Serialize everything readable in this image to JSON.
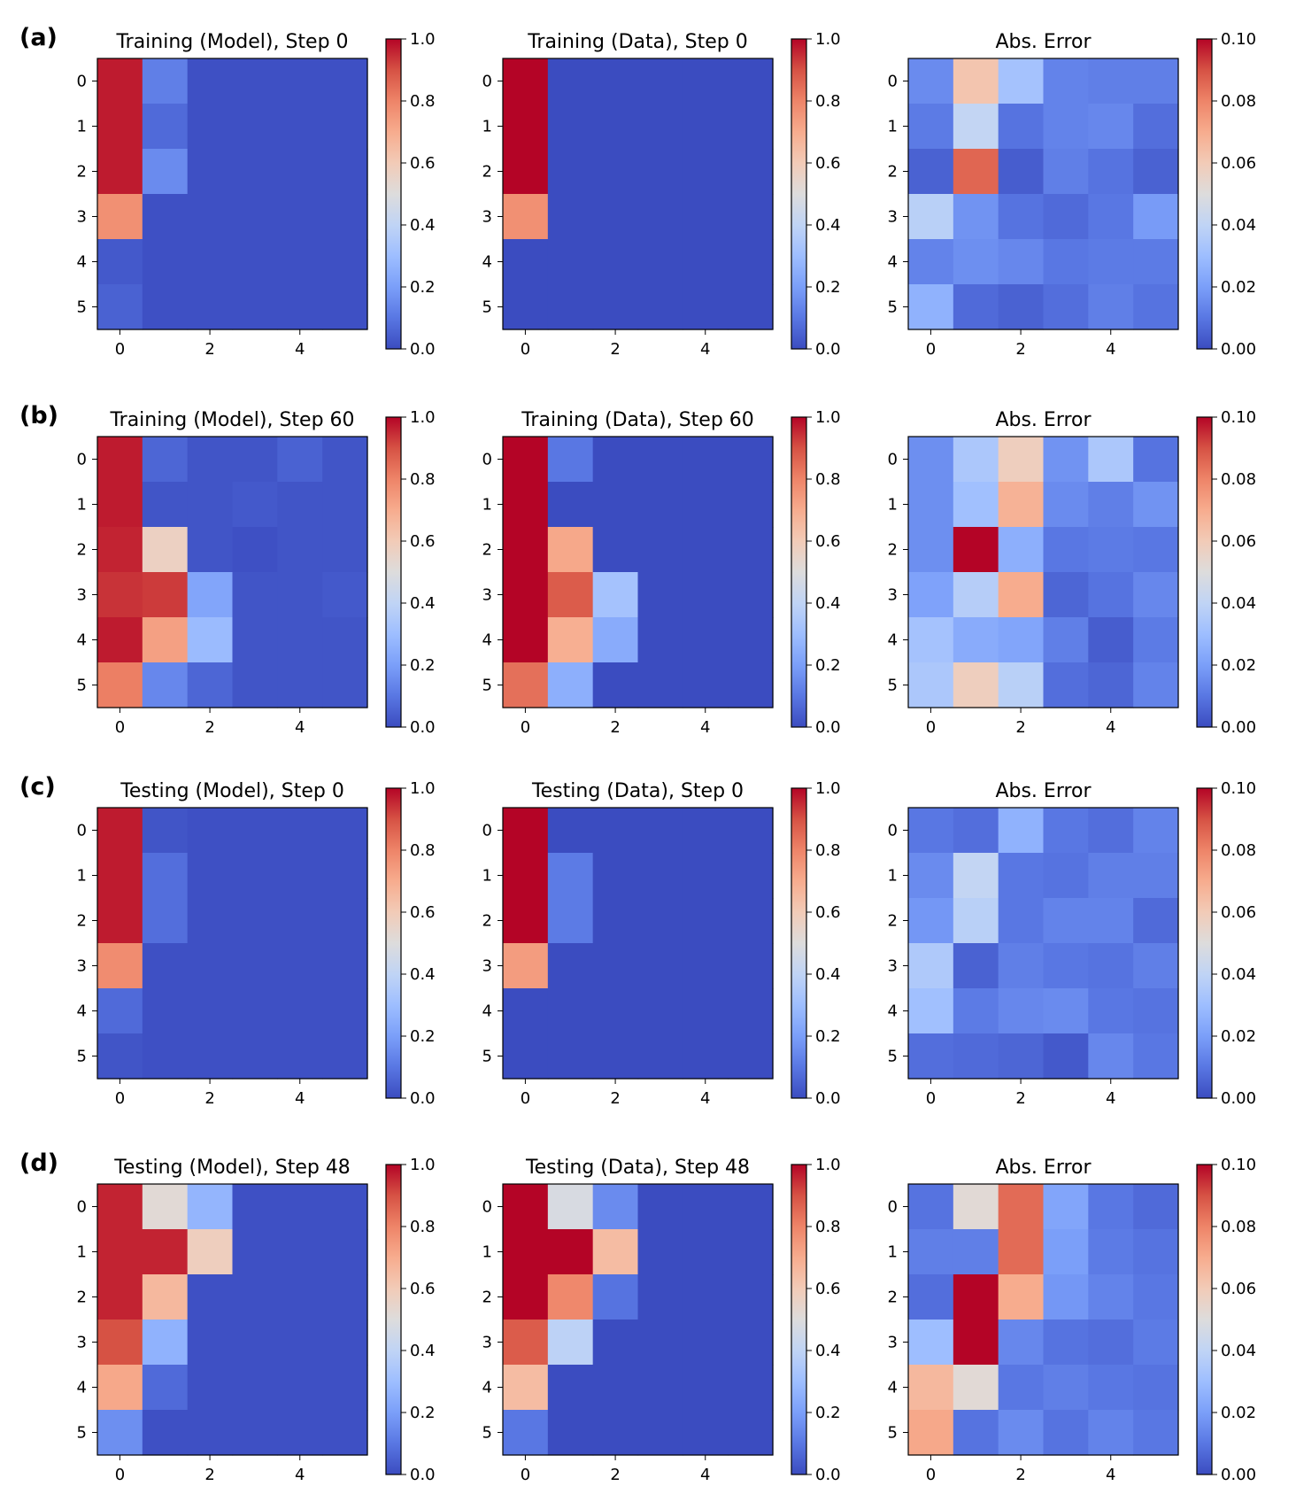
{
  "colormap": {
    "name": "coolwarm",
    "stops": [
      "#3b4cc0",
      "#5977e3",
      "#7b9ff9",
      "#9ebeff",
      "#c0d4f5",
      "#dddcdc",
      "#f2cbb7",
      "#f7ac8e",
      "#ee8468",
      "#d65244",
      "#b40426"
    ]
  },
  "rows": [
    {
      "label": "(a)"
    },
    {
      "label": "(b)"
    },
    {
      "label": "(c)"
    },
    {
      "label": "(d)"
    }
  ],
  "chart_data": [
    {
      "type": "heatmap",
      "row": 0,
      "col": 0,
      "title": "Training (Model), Step 0",
      "xticks": [
        "0",
        "2",
        "4"
      ],
      "yticks": [
        "0",
        "1",
        "2",
        "3",
        "4",
        "5"
      ],
      "clim": [
        0,
        1.0
      ],
      "cbar_ticks": [
        "0.0",
        "0.2",
        "0.4",
        "0.6",
        "0.8",
        "1.0"
      ],
      "values": [
        [
          0.97,
          0.12,
          0.01,
          0.01,
          0.01,
          0.01
        ],
        [
          0.97,
          0.07,
          0.01,
          0.01,
          0.01,
          0.01
        ],
        [
          0.97,
          0.15,
          0.01,
          0.01,
          0.01,
          0.01
        ],
        [
          0.77,
          0.01,
          0.01,
          0.01,
          0.01,
          0.01
        ],
        [
          0.03,
          0.01,
          0.01,
          0.01,
          0.01,
          0.01
        ],
        [
          0.05,
          0.01,
          0.01,
          0.01,
          0.01,
          0.01
        ]
      ]
    },
    {
      "type": "heatmap",
      "row": 0,
      "col": 1,
      "title": "Training (Data), Step 0",
      "xticks": [
        "0",
        "2",
        "4"
      ],
      "yticks": [
        "0",
        "1",
        "2",
        "3",
        "4",
        "5"
      ],
      "clim": [
        0,
        1.0
      ],
      "cbar_ticks": [
        "0.0",
        "0.2",
        "0.4",
        "0.6",
        "0.8",
        "1.0"
      ],
      "values": [
        [
          1.0,
          0.0,
          0.0,
          0.0,
          0.0,
          0.0
        ],
        [
          1.0,
          0.0,
          0.0,
          0.0,
          0.0,
          0.0
        ],
        [
          1.0,
          0.0,
          0.0,
          0.0,
          0.0,
          0.0
        ],
        [
          0.77,
          0.0,
          0.0,
          0.0,
          0.0,
          0.0
        ],
        [
          0.0,
          0.0,
          0.0,
          0.0,
          0.0,
          0.0
        ],
        [
          0.0,
          0.0,
          0.0,
          0.0,
          0.0,
          0.0
        ]
      ]
    },
    {
      "type": "heatmap",
      "row": 0,
      "col": 2,
      "title": "Abs. Error",
      "xticks": [
        "0",
        "2",
        "4"
      ],
      "yticks": [
        "0",
        "1",
        "2",
        "3",
        "4",
        "5"
      ],
      "clim": [
        0,
        0.1
      ],
      "cbar_ticks": [
        "0.00",
        "0.02",
        "0.04",
        "0.06",
        "0.08",
        "0.10"
      ],
      "values": [
        [
          0.015,
          0.062,
          0.032,
          0.013,
          0.012,
          0.012
        ],
        [
          0.011,
          0.041,
          0.009,
          0.013,
          0.014,
          0.008
        ],
        [
          0.005,
          0.086,
          0.004,
          0.012,
          0.009,
          0.005
        ],
        [
          0.038,
          0.017,
          0.009,
          0.007,
          0.01,
          0.019
        ],
        [
          0.013,
          0.016,
          0.014,
          0.01,
          0.011,
          0.011
        ],
        [
          0.026,
          0.007,
          0.005,
          0.008,
          0.012,
          0.009
        ]
      ]
    },
    {
      "type": "heatmap",
      "row": 1,
      "col": 0,
      "title": "Training (Model), Step 60",
      "xticks": [
        "0",
        "2",
        "4"
      ],
      "yticks": [
        "0",
        "1",
        "2",
        "3",
        "4",
        "5"
      ],
      "clim": [
        0,
        1.0
      ],
      "cbar_ticks": [
        "0.0",
        "0.2",
        "0.4",
        "0.6",
        "0.8",
        "1.0"
      ],
      "values": [
        [
          0.97,
          0.06,
          0.02,
          0.02,
          0.05,
          0.02
        ],
        [
          0.97,
          0.02,
          0.02,
          0.03,
          0.02,
          0.02
        ],
        [
          0.96,
          0.57,
          0.02,
          0.01,
          0.02,
          0.02
        ],
        [
          0.94,
          0.93,
          0.22,
          0.02,
          0.02,
          0.03
        ],
        [
          0.97,
          0.73,
          0.29,
          0.02,
          0.02,
          0.02
        ],
        [
          0.81,
          0.14,
          0.06,
          0.02,
          0.02,
          0.02
        ]
      ]
    },
    {
      "type": "heatmap",
      "row": 1,
      "col": 1,
      "title": "Training (Data), Step 60",
      "xticks": [
        "0",
        "2",
        "4"
      ],
      "yticks": [
        "0",
        "1",
        "2",
        "3",
        "4",
        "5"
      ],
      "clim": [
        0,
        1.0
      ],
      "cbar_ticks": [
        "0.0",
        "0.2",
        "0.4",
        "0.6",
        "0.8",
        "1.0"
      ],
      "values": [
        [
          1.0,
          0.1,
          0.0,
          0.0,
          0.0,
          0.0
        ],
        [
          1.0,
          0.0,
          0.0,
          0.0,
          0.0,
          0.0
        ],
        [
          1.0,
          0.71,
          0.0,
          0.0,
          0.0,
          0.0
        ],
        [
          1.0,
          0.88,
          0.32,
          0.0,
          0.0,
          0.0
        ],
        [
          1.0,
          0.69,
          0.24,
          0.0,
          0.0,
          0.0
        ],
        [
          0.84,
          0.25,
          0.0,
          0.0,
          0.0,
          0.0
        ]
      ]
    },
    {
      "type": "heatmap",
      "row": 1,
      "col": 2,
      "title": "Abs. Error",
      "xticks": [
        "0",
        "2",
        "4"
      ],
      "yticks": [
        "0",
        "1",
        "2",
        "3",
        "4",
        "5"
      ],
      "clim": [
        0,
        0.1
      ],
      "cbar_ticks": [
        "0.00",
        "0.02",
        "0.04",
        "0.06",
        "0.08",
        "0.10"
      ],
      "values": [
        [
          0.016,
          0.034,
          0.058,
          0.017,
          0.034,
          0.009
        ],
        [
          0.016,
          0.031,
          0.068,
          0.015,
          0.012,
          0.017
        ],
        [
          0.016,
          0.1,
          0.025,
          0.01,
          0.011,
          0.01
        ],
        [
          0.021,
          0.037,
          0.07,
          0.006,
          0.009,
          0.014
        ],
        [
          0.032,
          0.024,
          0.022,
          0.012,
          0.004,
          0.011
        ],
        [
          0.034,
          0.058,
          0.038,
          0.008,
          0.006,
          0.013
        ]
      ]
    },
    {
      "type": "heatmap",
      "row": 2,
      "col": 0,
      "title": "Testing (Model), Step 0",
      "xticks": [
        "0",
        "2",
        "4"
      ],
      "yticks": [
        "0",
        "1",
        "2",
        "3",
        "4",
        "5"
      ],
      "clim": [
        0,
        1.0
      ],
      "cbar_ticks": [
        "0.0",
        "0.2",
        "0.4",
        "0.6",
        "0.8",
        "1.0"
      ],
      "values": [
        [
          0.97,
          0.02,
          0.01,
          0.01,
          0.01,
          0.01
        ],
        [
          0.97,
          0.08,
          0.01,
          0.01,
          0.01,
          0.01
        ],
        [
          0.97,
          0.08,
          0.01,
          0.01,
          0.01,
          0.01
        ],
        [
          0.78,
          0.01,
          0.01,
          0.01,
          0.01,
          0.01
        ],
        [
          0.07,
          0.01,
          0.01,
          0.01,
          0.01,
          0.01
        ],
        [
          0.02,
          0.01,
          0.01,
          0.01,
          0.01,
          0.01
        ]
      ]
    },
    {
      "type": "heatmap",
      "row": 2,
      "col": 1,
      "title": "Testing (Data), Step 0",
      "xticks": [
        "0",
        "2",
        "4"
      ],
      "yticks": [
        "0",
        "1",
        "2",
        "3",
        "4",
        "5"
      ],
      "clim": [
        0,
        1.0
      ],
      "cbar_ticks": [
        "0.0",
        "0.2",
        "0.4",
        "0.6",
        "0.8",
        "1.0"
      ],
      "values": [
        [
          1.0,
          0.0,
          0.0,
          0.0,
          0.0,
          0.0
        ],
        [
          1.0,
          0.11,
          0.0,
          0.0,
          0.0,
          0.0
        ],
        [
          1.0,
          0.11,
          0.0,
          0.0,
          0.0,
          0.0
        ],
        [
          0.74,
          0.0,
          0.0,
          0.0,
          0.0,
          0.0
        ],
        [
          0.0,
          0.0,
          0.0,
          0.0,
          0.0,
          0.0
        ],
        [
          0.0,
          0.0,
          0.0,
          0.0,
          0.0,
          0.0
        ]
      ]
    },
    {
      "type": "heatmap",
      "row": 2,
      "col": 2,
      "title": "Abs. Error",
      "xticks": [
        "0",
        "2",
        "4"
      ],
      "yticks": [
        "0",
        "1",
        "2",
        "3",
        "4",
        "5"
      ],
      "clim": [
        0,
        0.1
      ],
      "cbar_ticks": [
        "0.00",
        "0.02",
        "0.04",
        "0.06",
        "0.08",
        "0.10"
      ],
      "values": [
        [
          0.01,
          0.008,
          0.026,
          0.01,
          0.008,
          0.013
        ],
        [
          0.015,
          0.041,
          0.01,
          0.009,
          0.012,
          0.012
        ],
        [
          0.018,
          0.038,
          0.01,
          0.013,
          0.013,
          0.007
        ],
        [
          0.035,
          0.005,
          0.012,
          0.01,
          0.009,
          0.012
        ],
        [
          0.031,
          0.011,
          0.014,
          0.015,
          0.01,
          0.009
        ],
        [
          0.008,
          0.007,
          0.006,
          0.003,
          0.014,
          0.01
        ]
      ]
    },
    {
      "type": "heatmap",
      "row": 3,
      "col": 0,
      "title": "Testing (Model), Step 48",
      "xticks": [
        "0",
        "2",
        "4"
      ],
      "yticks": [
        "0",
        "1",
        "2",
        "3",
        "4",
        "5"
      ],
      "clim": [
        0,
        1.0
      ],
      "cbar_ticks": [
        "0.0",
        "0.2",
        "0.4",
        "0.6",
        "0.8",
        "1.0"
      ],
      "values": [
        [
          0.96,
          0.52,
          0.27,
          0.01,
          0.01,
          0.01
        ],
        [
          0.96,
          0.96,
          0.58,
          0.01,
          0.01,
          0.01
        ],
        [
          0.96,
          0.66,
          0.01,
          0.01,
          0.01,
          0.01
        ],
        [
          0.9,
          0.26,
          0.01,
          0.01,
          0.01,
          0.01
        ],
        [
          0.71,
          0.07,
          0.01,
          0.01,
          0.01,
          0.01
        ],
        [
          0.16,
          0.01,
          0.01,
          0.01,
          0.01,
          0.01
        ]
      ]
    },
    {
      "type": "heatmap",
      "row": 3,
      "col": 1,
      "title": "Testing (Data), Step 48",
      "xticks": [
        "0",
        "2",
        "4"
      ],
      "yticks": [
        "0",
        "1",
        "2",
        "3",
        "4",
        "5"
      ],
      "clim": [
        0,
        1.0
      ],
      "cbar_ticks": [
        "0.0",
        "0.2",
        "0.4",
        "0.6",
        "0.8",
        "1.0"
      ],
      "values": [
        [
          1.0,
          0.48,
          0.15,
          0.0,
          0.0,
          0.0
        ],
        [
          1.0,
          1.0,
          0.65,
          0.0,
          0.0,
          0.0
        ],
        [
          1.0,
          0.79,
          0.09,
          0.0,
          0.0,
          0.0
        ],
        [
          0.88,
          0.39,
          0.0,
          0.0,
          0.0,
          0.0
        ],
        [
          0.65,
          0.0,
          0.0,
          0.0,
          0.0,
          0.0
        ],
        [
          0.1,
          0.0,
          0.0,
          0.0,
          0.0,
          0.0
        ]
      ]
    },
    {
      "type": "heatmap",
      "row": 3,
      "col": 2,
      "title": "Abs. Error",
      "xticks": [
        "0",
        "2",
        "4"
      ],
      "yticks": [
        "0",
        "1",
        "2",
        "3",
        "4",
        "5"
      ],
      "clim": [
        0,
        0.1
      ],
      "cbar_ticks": [
        "0.00",
        "0.02",
        "0.04",
        "0.06",
        "0.08",
        "0.10"
      ],
      "values": [
        [
          0.009,
          0.052,
          0.085,
          0.022,
          0.01,
          0.007
        ],
        [
          0.012,
          0.012,
          0.085,
          0.02,
          0.011,
          0.009
        ],
        [
          0.008,
          0.1,
          0.07,
          0.018,
          0.013,
          0.01
        ],
        [
          0.03,
          0.1,
          0.014,
          0.009,
          0.008,
          0.011
        ],
        [
          0.066,
          0.052,
          0.01,
          0.012,
          0.01,
          0.009
        ],
        [
          0.071,
          0.009,
          0.015,
          0.009,
          0.013,
          0.01
        ]
      ]
    }
  ]
}
